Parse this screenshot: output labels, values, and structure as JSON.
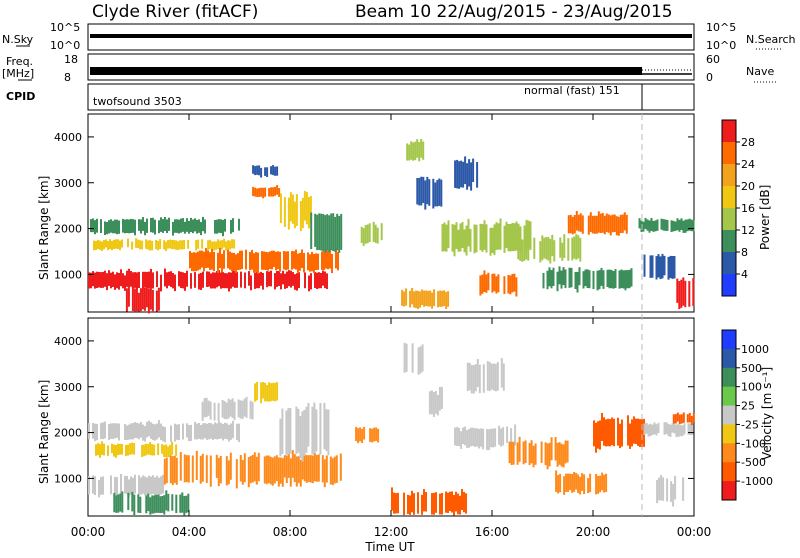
{
  "header": {
    "station_title": "Clyde River (fitACF)",
    "beam_title": "Beam 10 22/Aug/2015 - 23/Aug/2015"
  },
  "panels": {
    "nsky": {
      "left_label": "N.Sky",
      "right_label": "N.Search",
      "left_ticks": [
        "10^5",
        "10^0"
      ],
      "right_ticks": [
        "10^5",
        "10^0"
      ]
    },
    "freq": {
      "left_label_1": "Freq.",
      "left_label_2": "[MHz]",
      "right_label": "Nave",
      "left_ticks": [
        "18",
        "8"
      ],
      "right_ticks": [
        "60",
        "0"
      ]
    },
    "cpid": {
      "label": "CPID",
      "mode_1": "twofsound 3503",
      "mode_2": "normal (fast) 151"
    }
  },
  "chart_data": [
    {
      "type": "heatmap",
      "name_shown": "Power",
      "colorbar_label": "Power [dB]",
      "colorbar_ticks": [
        "28",
        "24",
        "20",
        "16",
        "12",
        "8",
        "4"
      ],
      "colorbar_colors": [
        "#ee1c1c",
        "#ff6a00",
        "#f2a21c",
        "#f0c814",
        "#a4c64a",
        "#3c8e5a",
        "#2c58a8",
        "#1f3cff"
      ],
      "ylabel": "Slant Range [km]",
      "yticks": [
        "4000",
        "3000",
        "2000",
        "1000"
      ],
      "ylim": [
        180,
        4500
      ],
      "xlim_hours": [
        0,
        24
      ],
      "bands": [
        {
          "t0": 0.0,
          "t1": 6.0,
          "r0": 1900,
          "r1": 2200,
          "color": "#3c8e5a"
        },
        {
          "t0": 0.2,
          "t1": 5.8,
          "r0": 1550,
          "r1": 1750,
          "color": "#f0c814"
        },
        {
          "t0": 0.0,
          "t1": 9.5,
          "r0": 700,
          "r1": 1050,
          "color": "#ee1c1c"
        },
        {
          "t0": 1.5,
          "t1": 2.8,
          "r0": 200,
          "r1": 700,
          "color": "#ee1c1c"
        },
        {
          "t0": 4.0,
          "t1": 10.0,
          "r0": 1100,
          "r1": 1500,
          "color": "#ff6a00"
        },
        {
          "t0": 6.5,
          "t1": 7.6,
          "r0": 2700,
          "r1": 2900,
          "color": "#ff6a00"
        },
        {
          "t0": 6.5,
          "t1": 7.5,
          "r0": 3150,
          "r1": 3350,
          "color": "#2c58a8"
        },
        {
          "t0": 7.6,
          "t1": 8.8,
          "r0": 2050,
          "r1": 2700,
          "color": "#f0c814"
        },
        {
          "t0": 8.8,
          "t1": 10.0,
          "r0": 1500,
          "r1": 2300,
          "color": "#3c8e5a"
        },
        {
          "t0": 10.8,
          "t1": 11.6,
          "r0": 1700,
          "r1": 2100,
          "color": "#a4c64a"
        },
        {
          "t0": 12.4,
          "t1": 14.3,
          "r0": 300,
          "r1": 650,
          "color": "#f2a21c"
        },
        {
          "t0": 12.6,
          "t1": 13.3,
          "r0": 3500,
          "r1": 3900,
          "color": "#a4c64a"
        },
        {
          "t0": 13.0,
          "t1": 14.0,
          "r0": 2500,
          "r1": 3100,
          "color": "#2c58a8"
        },
        {
          "t0": 14.0,
          "t1": 17.5,
          "r0": 1500,
          "r1": 2100,
          "color": "#a4c64a"
        },
        {
          "t0": 14.5,
          "t1": 15.5,
          "r0": 2900,
          "r1": 3500,
          "color": "#2c58a8"
        },
        {
          "t0": 15.5,
          "t1": 17.0,
          "r0": 600,
          "r1": 1000,
          "color": "#ff6a00"
        },
        {
          "t0": 17.0,
          "t1": 19.5,
          "r0": 1300,
          "r1": 1800,
          "color": "#a4c64a"
        },
        {
          "t0": 18.0,
          "t1": 21.5,
          "r0": 700,
          "r1": 1100,
          "color": "#3c8e5a"
        },
        {
          "t0": 19.0,
          "t1": 21.5,
          "r0": 1900,
          "r1": 2300,
          "color": "#ff6a00"
        },
        {
          "t0": 21.8,
          "t1": 24.0,
          "r0": 1950,
          "r1": 2200,
          "color": "#3c8e5a"
        },
        {
          "t0": 22.0,
          "t1": 23.2,
          "r0": 900,
          "r1": 1400,
          "color": "#2c58a8"
        },
        {
          "t0": 23.3,
          "t1": 24.0,
          "r0": 300,
          "r1": 900,
          "color": "#ee1c1c"
        }
      ]
    },
    {
      "type": "heatmap",
      "name_shown": "Velocity",
      "colorbar_label": "Velocity [m s⁻¹]",
      "colorbar_ticks": [
        "1000",
        "500",
        "100",
        "25",
        "-25",
        "-100",
        "-500",
        "-1000"
      ],
      "colorbar_colors": [
        "#1f3cff",
        "#2c58a8",
        "#3c8e5a",
        "#6ac84a",
        "#c8c8c8",
        "#f0c814",
        "#ff8a1c",
        "#ff5a00",
        "#ee1c1c"
      ],
      "xlabel": "Time UT",
      "xticks": [
        "00:00",
        "04:00",
        "08:00",
        "12:00",
        "16:00",
        "20:00",
        "00:00"
      ],
      "ylabel": "Slant Range [km]",
      "yticks": [
        "4000",
        "3000",
        "2000",
        "1000"
      ],
      "ylim": [
        180,
        4500
      ],
      "xlim_hours": [
        0,
        24
      ],
      "bands": [
        {
          "t0": 0.0,
          "t1": 6.0,
          "r0": 1850,
          "r1": 2200,
          "color": "#c8c8c8"
        },
        {
          "t0": 0.2,
          "t1": 3.5,
          "r0": 1500,
          "r1": 1750,
          "color": "#f0c814"
        },
        {
          "t0": 0.0,
          "t1": 3.0,
          "r0": 650,
          "r1": 1050,
          "color": "#c8c8c8"
        },
        {
          "t0": 1.0,
          "t1": 4.0,
          "r0": 250,
          "r1": 650,
          "color": "#3c8e5a"
        },
        {
          "t0": 3.0,
          "t1": 10.0,
          "r0": 900,
          "r1": 1500,
          "color": "#ff8a1c"
        },
        {
          "t0": 4.5,
          "t1": 6.5,
          "r0": 2300,
          "r1": 2700,
          "color": "#c8c8c8"
        },
        {
          "t0": 6.5,
          "t1": 7.5,
          "r0": 2700,
          "r1": 3100,
          "color": "#f0c814"
        },
        {
          "t0": 7.5,
          "t1": 9.5,
          "r0": 1500,
          "r1": 2500,
          "color": "#c8c8c8"
        },
        {
          "t0": 10.5,
          "t1": 11.5,
          "r0": 1800,
          "r1": 2100,
          "color": "#ff8a1c"
        },
        {
          "t0": 12.0,
          "t1": 15.0,
          "r0": 250,
          "r1": 700,
          "color": "#ff5a00"
        },
        {
          "t0": 12.5,
          "t1": 13.3,
          "r0": 3300,
          "r1": 3900,
          "color": "#c8c8c8"
        },
        {
          "t0": 13.5,
          "t1": 14.0,
          "r0": 2400,
          "r1": 2900,
          "color": "#c8c8c8"
        },
        {
          "t0": 14.5,
          "t1": 17.0,
          "r0": 1700,
          "r1": 2100,
          "color": "#c8c8c8"
        },
        {
          "t0": 15.0,
          "t1": 16.5,
          "r0": 2900,
          "r1": 3500,
          "color": "#c8c8c8"
        },
        {
          "t0": 16.5,
          "t1": 19.0,
          "r0": 1300,
          "r1": 1800,
          "color": "#ff8a1c"
        },
        {
          "t0": 18.5,
          "t1": 20.5,
          "r0": 700,
          "r1": 1100,
          "color": "#ff8a1c"
        },
        {
          "t0": 20.0,
          "t1": 22.0,
          "r0": 1700,
          "r1": 2300,
          "color": "#ff5a00"
        },
        {
          "t0": 22.0,
          "t1": 24.0,
          "r0": 1950,
          "r1": 2200,
          "color": "#c8c8c8"
        },
        {
          "t0": 22.5,
          "t1": 23.6,
          "r0": 500,
          "r1": 1000,
          "color": "#c8c8c8"
        },
        {
          "t0": 23.0,
          "t1": 24.0,
          "r0": 2200,
          "r1": 2400,
          "color": "#ff5a00"
        }
      ]
    }
  ]
}
